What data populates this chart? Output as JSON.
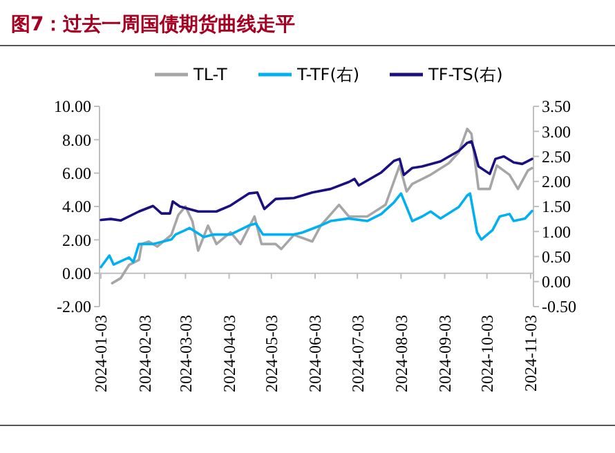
{
  "chart_data": {
    "type": "line",
    "title": "图7：过去一周国债期货曲线走平",
    "legend": "top",
    "grid": false,
    "xlim": [
      "2024-01-02",
      "2024-11-05"
    ],
    "xticks": [
      "2024-01-03",
      "2024-02-03",
      "2024-03-03",
      "2024-04-03",
      "2024-05-03",
      "2024-06-03",
      "2024-07-03",
      "2024-08-03",
      "2024-09-03",
      "2024-10-03",
      "2024-11-03"
    ],
    "ylim": [
      -2,
      10
    ],
    "yticks": [
      {
        "value": -2,
        "label": "-2.00"
      },
      {
        "value": 0,
        "label": "0.00"
      },
      {
        "value": 2,
        "label": "2.00"
      },
      {
        "value": 4,
        "label": "4.00"
      },
      {
        "value": 6,
        "label": "6.00"
      },
      {
        "value": 8,
        "label": "8.00"
      },
      {
        "value": 10,
        "label": "10.00"
      }
    ],
    "y2lim": [
      -0.5,
      3.5
    ],
    "y2ticks": [
      {
        "value": -0.5,
        "label": "-0.50"
      },
      {
        "value": 0,
        "label": "0.00"
      },
      {
        "value": 0.5,
        "label": "0.50"
      },
      {
        "value": 1,
        "label": "1.00"
      },
      {
        "value": 1.5,
        "label": "1.50"
      },
      {
        "value": 2,
        "label": "2.00"
      },
      {
        "value": 2.5,
        "label": "2.50"
      },
      {
        "value": 3,
        "label": "3.00"
      },
      {
        "value": 3.5,
        "label": "3.50"
      }
    ],
    "series": [
      {
        "name": "TL-T",
        "color": "#a6a6a6",
        "x": [
          "2024-01-11",
          "2024-01-17",
          "2024-01-23",
          "2024-01-30",
          "2024-02-01",
          "2024-02-06",
          "2024-02-12",
          "2024-02-22",
          "2024-02-27",
          "2024-03-03",
          "2024-03-08",
          "2024-03-12",
          "2024-03-19",
          "2024-03-25",
          "2024-04-04",
          "2024-04-11",
          "2024-04-21",
          "2024-04-26",
          "2024-05-06",
          "2024-05-10",
          "2024-05-19",
          "2024-06-01",
          "2024-06-07",
          "2024-06-20",
          "2024-06-27",
          "2024-07-10",
          "2024-07-23",
          "2024-08-02",
          "2024-08-07",
          "2024-08-11",
          "2024-08-24",
          "2024-09-06",
          "2024-09-13",
          "2024-09-19",
          "2024-09-22",
          "2024-09-27",
          "2024-10-05",
          "2024-10-10",
          "2024-10-19",
          "2024-10-25",
          "2024-11-01",
          "2024-11-04"
        ],
        "values": [
          -0.6,
          -0.3,
          0.5,
          0.8,
          1.75,
          1.9,
          1.6,
          2.3,
          3.5,
          4.0,
          3.1,
          1.35,
          2.85,
          1.75,
          2.45,
          1.75,
          3.4,
          1.75,
          1.75,
          1.45,
          2.3,
          1.9,
          2.85,
          4.1,
          3.4,
          3.4,
          4.1,
          6.45,
          4.9,
          5.35,
          5.9,
          6.6,
          7.25,
          8.65,
          8.35,
          5.05,
          5.05,
          6.45,
          5.9,
          5.05,
          6.15,
          6.3
        ]
      },
      {
        "name": "T-TF(右)",
        "color": "#00b0f0",
        "axis": "y2",
        "x": [
          "2024-01-03",
          "2024-01-09",
          "2024-01-12",
          "2024-01-23",
          "2024-01-26",
          "2024-01-30",
          "2024-02-09",
          "2024-02-22",
          "2024-02-25",
          "2024-03-03",
          "2024-03-06",
          "2024-03-16",
          "2024-03-23",
          "2024-04-04",
          "2024-04-17",
          "2024-04-22",
          "2024-04-27",
          "2024-05-06",
          "2024-05-19",
          "2024-05-25",
          "2024-06-07",
          "2024-06-14",
          "2024-06-27",
          "2024-07-10",
          "2024-07-20",
          "2024-07-29",
          "2024-08-03",
          "2024-08-11",
          "2024-08-18",
          "2024-08-24",
          "2024-08-31",
          "2024-09-13",
          "2024-09-19",
          "2024-09-21",
          "2024-09-26",
          "2024-09-29",
          "2024-10-07",
          "2024-10-12",
          "2024-10-19",
          "2024-10-22",
          "2024-10-30",
          "2024-11-04"
        ],
        "values": [
          0.29,
          0.52,
          0.34,
          0.48,
          0.39,
          0.75,
          0.75,
          0.84,
          0.94,
          1.03,
          1.07,
          0.89,
          0.94,
          0.94,
          1.12,
          1.16,
          0.94,
          0.94,
          0.94,
          0.98,
          1.12,
          1.21,
          1.26,
          1.21,
          1.35,
          1.58,
          1.76,
          1.21,
          1.3,
          1.4,
          1.26,
          1.49,
          1.72,
          1.76,
          0.98,
          0.84,
          1.03,
          1.3,
          1.35,
          1.21,
          1.26,
          1.41
        ]
      },
      {
        "name": "TF-TS(右)",
        "color": "#1a1080",
        "axis": "y2",
        "x": [
          "2024-01-03",
          "2024-01-10",
          "2024-01-17",
          "2024-01-30",
          "2024-02-09",
          "2024-02-15",
          "2024-02-21",
          "2024-02-23",
          "2024-02-28",
          "2024-03-12",
          "2024-03-25",
          "2024-04-04",
          "2024-04-17",
          "2024-04-23",
          "2024-04-28",
          "2024-05-06",
          "2024-05-19",
          "2024-06-01",
          "2024-06-14",
          "2024-06-27",
          "2024-07-01",
          "2024-07-04",
          "2024-07-20",
          "2024-07-29",
          "2024-08-02",
          "2024-08-05",
          "2024-08-11",
          "2024-08-18",
          "2024-08-31",
          "2024-09-13",
          "2024-09-19",
          "2024-09-22",
          "2024-09-24",
          "2024-09-27",
          "2024-10-05",
          "2024-10-09",
          "2024-10-15",
          "2024-10-22",
          "2024-10-28",
          "2024-11-04"
        ],
        "values": [
          1.23,
          1.25,
          1.22,
          1.4,
          1.51,
          1.36,
          1.36,
          1.6,
          1.5,
          1.4,
          1.4,
          1.52,
          1.76,
          1.78,
          1.45,
          1.65,
          1.67,
          1.78,
          1.85,
          1.99,
          2.05,
          1.92,
          2.18,
          2.41,
          2.45,
          2.13,
          2.27,
          2.3,
          2.4,
          2.61,
          2.77,
          2.8,
          2.62,
          2.3,
          2.15,
          2.45,
          2.5,
          2.38,
          2.35,
          2.45
        ]
      }
    ]
  }
}
